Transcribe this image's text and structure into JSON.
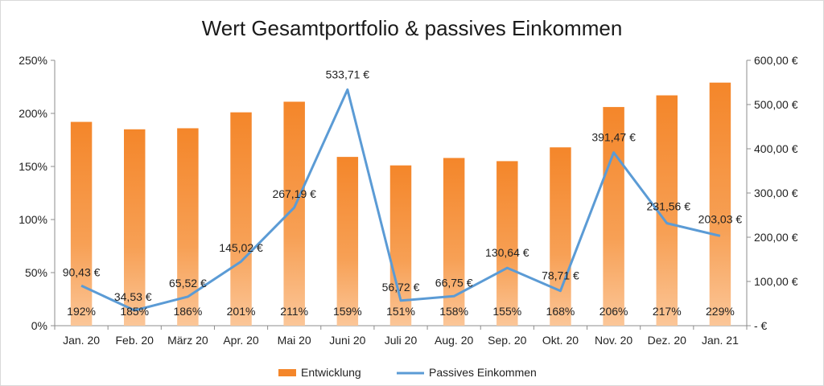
{
  "chart_data": {
    "type": "bar+line",
    "title": "Wert Gesamtportfolio & passives Einkommen",
    "categories": [
      "Jan. 20",
      "Feb. 20",
      "März 20",
      "Apr. 20",
      "Mai 20",
      "Juni 20",
      "Juli 20",
      "Aug. 20",
      "Sep. 20",
      "Okt. 20",
      "Nov. 20",
      "Dez. 20",
      "Jan. 21"
    ],
    "series": [
      {
        "name": "Entwicklung",
        "type": "bar",
        "axis": "left",
        "color": "#f4862a",
        "values": [
          192,
          185,
          186,
          201,
          211,
          159,
          151,
          158,
          155,
          168,
          206,
          217,
          229
        ],
        "labels": [
          "192%",
          "185%",
          "186%",
          "201%",
          "211%",
          "159%",
          "151%",
          "158%",
          "155%",
          "168%",
          "206%",
          "217%",
          "229%"
        ]
      },
      {
        "name": "Passives Einkommen",
        "type": "line",
        "axis": "right",
        "color": "#5b9bd5",
        "values": [
          90.43,
          34.53,
          65.52,
          145.02,
          267.19,
          533.71,
          56.72,
          66.75,
          130.64,
          78.71,
          391.47,
          231.56,
          203.03
        ],
        "labels": [
          "90,43 €",
          "34,53 €",
          "65,52 €",
          "145,02 €",
          "267,19 €",
          "533,71 €",
          "56,72 €",
          "66,75 €",
          "130,64 €",
          "78,71 €",
          "391,47 €",
          "231,56 €",
          "203,03 €"
        ]
      }
    ],
    "y_left": {
      "min": 0,
      "max": 250,
      "ticks": [
        "0%",
        "50%",
        "100%",
        "150%",
        "200%",
        "250%"
      ]
    },
    "y_right": {
      "min": 0,
      "max": 600,
      "ticks": [
        "-  €",
        "100,00 €",
        "200,00 €",
        "300,00 €",
        "400,00 €",
        "500,00 €",
        "600,00 €"
      ]
    },
    "grid": false,
    "legend": "bottom"
  }
}
